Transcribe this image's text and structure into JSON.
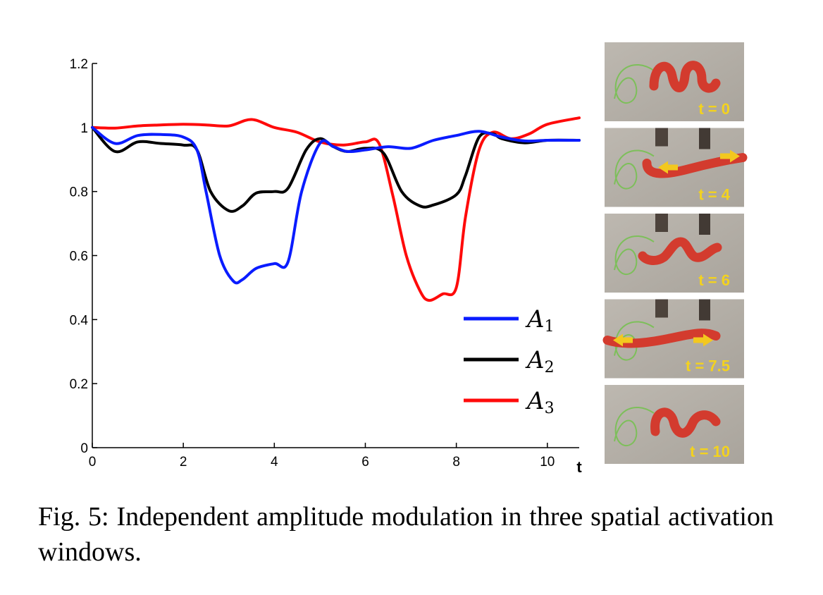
{
  "chart_data": {
    "type": "line",
    "title": "",
    "xlabel": "t",
    "ylabel": "",
    "xlim": [
      0,
      10.7
    ],
    "ylim": [
      0,
      1.2
    ],
    "x_ticks": [
      "0",
      "2",
      "4",
      "6",
      "8",
      "10"
    ],
    "y_ticks": [
      "0",
      "0.2",
      "0.4",
      "0.6",
      "0.8",
      "1",
      "1.2"
    ],
    "grid": false,
    "legend_position": "lower-right",
    "series": [
      {
        "name": "A1",
        "name_base": "A",
        "name_sub": "1",
        "color": "#0a1cff",
        "x": [
          0,
          0.5,
          1,
          1.5,
          2,
          2.3,
          2.5,
          2.8,
          3.1,
          3.3,
          3.6,
          4,
          4.3,
          4.6,
          5,
          5.3,
          5.6,
          6,
          6.5,
          7,
          7.5,
          8,
          8.5,
          9,
          9.5,
          10,
          10.7
        ],
        "y": [
          1.0,
          0.95,
          0.975,
          0.978,
          0.97,
          0.93,
          0.8,
          0.6,
          0.52,
          0.525,
          0.56,
          0.575,
          0.58,
          0.8,
          0.95,
          0.94,
          0.925,
          0.93,
          0.94,
          0.935,
          0.96,
          0.975,
          0.988,
          0.97,
          0.958,
          0.96,
          0.96
        ]
      },
      {
        "name": "A2",
        "name_base": "A",
        "name_sub": "2",
        "color": "#000000",
        "x": [
          0,
          0.5,
          1,
          1.5,
          2,
          2.3,
          2.6,
          3,
          3.3,
          3.6,
          4,
          4.3,
          4.7,
          5,
          5.3,
          5.6,
          6,
          6.4,
          6.8,
          7.2,
          7.5,
          8,
          8.2,
          8.5,
          8.8,
          9,
          9.5,
          10,
          10.7
        ],
        "y": [
          1.0,
          0.925,
          0.955,
          0.95,
          0.945,
          0.93,
          0.8,
          0.74,
          0.755,
          0.795,
          0.8,
          0.81,
          0.93,
          0.965,
          0.94,
          0.925,
          0.935,
          0.92,
          0.8,
          0.755,
          0.758,
          0.79,
          0.85,
          0.97,
          0.98,
          0.965,
          0.952,
          0.96,
          0.96
        ]
      },
      {
        "name": "A3",
        "name_base": "A",
        "name_sub": "3",
        "color": "#ff0a0a",
        "x": [
          0,
          0.5,
          1,
          1.5,
          2,
          2.5,
          3,
          3.5,
          4,
          4.5,
          5,
          5.5,
          6,
          6.3,
          6.6,
          6.9,
          7.2,
          7.4,
          7.7,
          8,
          8.2,
          8.5,
          8.8,
          9.2,
          9.6,
          10,
          10.7
        ],
        "y": [
          1.0,
          0.998,
          1.005,
          1.008,
          1.01,
          1.008,
          1.005,
          1.025,
          1.0,
          0.985,
          0.955,
          0.945,
          0.955,
          0.95,
          0.79,
          0.6,
          0.49,
          0.46,
          0.48,
          0.5,
          0.72,
          0.93,
          0.985,
          0.965,
          0.98,
          1.01,
          1.03
        ]
      }
    ]
  },
  "photos": [
    {
      "label": "t = 0",
      "arrows": []
    },
    {
      "label": "t = 4",
      "arrows": [
        "left",
        "right"
      ]
    },
    {
      "label": "t = 6",
      "arrows": []
    },
    {
      "label": "t = 7.5",
      "arrows": [
        "left",
        "right"
      ]
    },
    {
      "label": "t = 10",
      "arrows": []
    }
  ],
  "caption": "Fig. 5: Independent amplitude modulation in three spatial activation windows."
}
